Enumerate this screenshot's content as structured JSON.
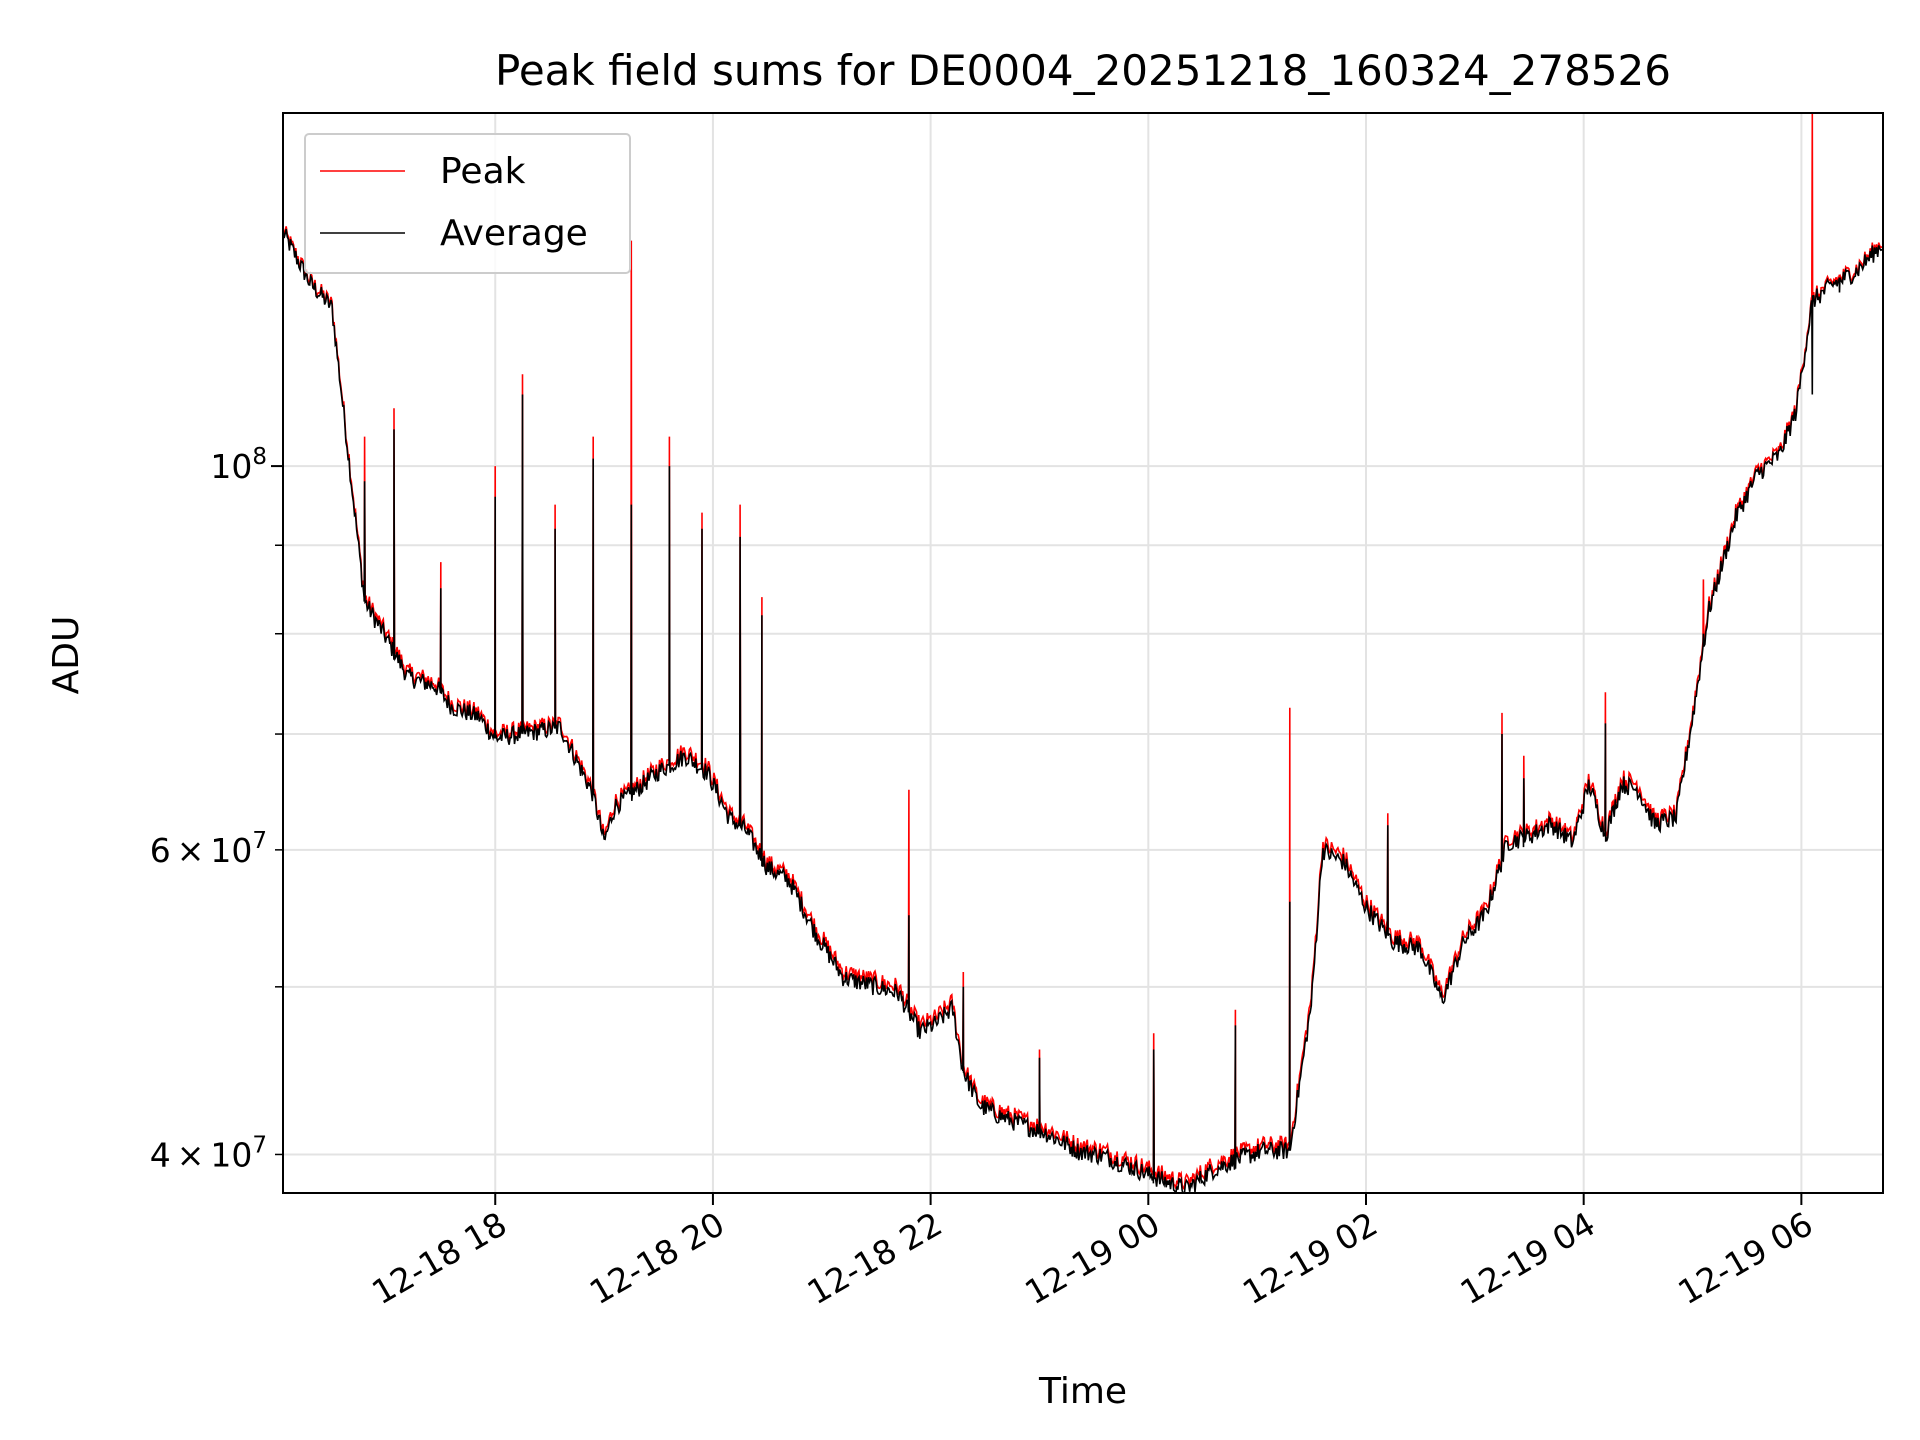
{
  "chart_data": {
    "type": "line",
    "title": "Peak field sums for DE0004_20251218_160324_278526",
    "xlabel": "Time",
    "ylabel": "ADU",
    "yscale": "log",
    "ylim": [
      38000000,
      160000000
    ],
    "xlim_hours_from_2025_12_18_16_00": [
      0.05,
      14.75
    ],
    "grid": true,
    "legend_position": "top-left",
    "x_ticks": [
      {
        "label": "12-18 18",
        "hour": 2
      },
      {
        "label": "12-18 20",
        "hour": 4
      },
      {
        "label": "12-18 22",
        "hour": 6
      },
      {
        "label": "12-19 00",
        "hour": 8
      },
      {
        "label": "12-19 02",
        "hour": 10
      },
      {
        "label": "12-19 04",
        "hour": 12
      },
      {
        "label": "12-19 06",
        "hour": 14
      }
    ],
    "y_major_ticks": [
      {
        "base": "10",
        "exp": "8",
        "value": 100000000
      }
    ],
    "y_minor_labeled_ticks": [
      {
        "mantissa": "6",
        "times": "×",
        "base": "10",
        "exp": "7",
        "value": 60000000
      },
      {
        "mantissa": "4",
        "times": "×",
        "base": "10",
        "exp": "7",
        "value": 40000000
      }
    ],
    "y_minor_grid_values": [
      50000000,
      70000000,
      80000000,
      90000000
    ],
    "series": [
      {
        "name": "Peak",
        "color": "#ff0000",
        "x_hours": [
          0.05,
          0.3,
          0.5,
          0.8,
          1.0,
          1.2,
          1.45,
          1.6,
          1.85,
          2.0,
          2.3,
          2.6,
          2.9,
          3.0,
          3.1,
          3.25,
          3.5,
          3.75,
          3.95,
          4.15,
          4.3,
          4.5,
          4.7,
          4.95,
          5.2,
          5.45,
          5.7,
          5.9,
          6.05,
          6.2,
          6.3,
          6.45,
          6.6,
          6.8,
          7.05,
          7.35,
          7.6,
          7.9,
          8.1,
          8.35,
          8.6,
          8.8,
          9.05,
          9.3,
          9.5,
          9.6,
          9.8,
          10.0,
          10.25,
          10.5,
          10.7,
          10.9,
          11.1,
          11.3,
          11.5,
          11.7,
          11.9,
          12.05,
          12.2,
          12.35,
          12.5,
          12.65,
          12.85,
          13.0,
          13.15,
          13.4,
          13.6,
          13.8,
          13.95,
          14.1,
          14.3,
          14.5,
          14.7,
          14.75
        ],
        "values": [
          137000000,
          128000000,
          124000000,
          84000000,
          80000000,
          76000000,
          75000000,
          73000000,
          72000000,
          70000000,
          70500000,
          71000000,
          65000000,
          61000000,
          64000000,
          65000000,
          67000000,
          68500000,
          67000000,
          63000000,
          62000000,
          59000000,
          58000000,
          54000000,
          51000000,
          50500000,
          50000000,
          47500000,
          48000000,
          49000000,
          45000000,
          43000000,
          42500000,
          42000000,
          41500000,
          40500000,
          40200000,
          39500000,
          39000000,
          38500000,
          39500000,
          40000000,
          40500000,
          40500000,
          49500000,
          60500000,
          59500000,
          56000000,
          53500000,
          53000000,
          49500000,
          53500000,
          55500000,
          61000000,
          61500000,
          62500000,
          61000000,
          66000000,
          61500000,
          66000000,
          65500000,
          62500000,
          63000000,
          72000000,
          83000000,
          94000000,
          99500000,
          102000000,
          108000000,
          125000000,
          128000000,
          130000000,
          134000000,
          135000000
        ],
        "spikes": [
          {
            "hour": 0.8,
            "value": 104000000
          },
          {
            "hour": 1.07,
            "value": 108000000
          },
          {
            "hour": 1.5,
            "value": 88000000
          },
          {
            "hour": 2.0,
            "value": 100000000
          },
          {
            "hour": 2.25,
            "value": 113000000
          },
          {
            "hour": 2.55,
            "value": 95000000
          },
          {
            "hour": 2.9,
            "value": 104000000
          },
          {
            "hour": 3.25,
            "value": 135000000
          },
          {
            "hour": 3.6,
            "value": 104000000
          },
          {
            "hour": 3.9,
            "value": 94000000
          },
          {
            "hour": 4.25,
            "value": 95000000
          },
          {
            "hour": 4.45,
            "value": 84000000
          },
          {
            "hour": 5.8,
            "value": 65000000
          },
          {
            "hour": 6.3,
            "value": 51000000
          },
          {
            "hour": 7.0,
            "value": 46000000
          },
          {
            "hour": 8.05,
            "value": 47000000
          },
          {
            "hour": 8.8,
            "value": 48500000
          },
          {
            "hour": 9.3,
            "value": 72500000
          },
          {
            "hour": 10.2,
            "value": 63000000
          },
          {
            "hour": 11.25,
            "value": 72000000
          },
          {
            "hour": 11.45,
            "value": 68000000
          },
          {
            "hour": 12.2,
            "value": 74000000
          },
          {
            "hour": 13.1,
            "value": 86000000
          },
          {
            "hour": 14.1,
            "value": 160000000
          },
          {
            "hour": 14.35,
            "value": 128000000
          }
        ]
      },
      {
        "name": "Average",
        "color": "#000000",
        "x_hours": [
          0.05,
          0.3,
          0.5,
          0.8,
          1.0,
          1.2,
          1.45,
          1.6,
          1.85,
          2.0,
          2.3,
          2.6,
          2.9,
          3.0,
          3.1,
          3.25,
          3.5,
          3.75,
          3.95,
          4.15,
          4.3,
          4.5,
          4.7,
          4.95,
          5.2,
          5.45,
          5.7,
          5.9,
          6.05,
          6.2,
          6.3,
          6.45,
          6.6,
          6.8,
          7.05,
          7.35,
          7.6,
          7.9,
          8.1,
          8.35,
          8.6,
          8.8,
          9.05,
          9.3,
          9.5,
          9.6,
          9.8,
          10.0,
          10.25,
          10.5,
          10.7,
          10.9,
          11.1,
          11.3,
          11.5,
          11.7,
          11.9,
          12.05,
          12.2,
          12.35,
          12.5,
          12.65,
          12.85,
          13.0,
          13.15,
          13.4,
          13.6,
          13.8,
          13.95,
          14.1,
          14.3,
          14.5,
          14.7,
          14.75
        ],
        "values": [
          136500000,
          127500000,
          123500000,
          83500000,
          79500000,
          75500000,
          74600000,
          72600000,
          71600000,
          69600000,
          70100000,
          70600000,
          64600000,
          60600000,
          63600000,
          64600000,
          66600000,
          68000000,
          66500000,
          62600000,
          61600000,
          58600000,
          57600000,
          53600000,
          50600000,
          50100000,
          49600000,
          47100000,
          47600000,
          48600000,
          44700000,
          42700000,
          42200000,
          41700000,
          41200000,
          40200000,
          39900000,
          39200000,
          38700000,
          38200000,
          39200000,
          39700000,
          40200000,
          40200000,
          49000000,
          60000000,
          59000000,
          55600000,
          53100000,
          52600000,
          49100000,
          53100000,
          55100000,
          60600000,
          61100000,
          62100000,
          60600000,
          65500000,
          61100000,
          65500000,
          65000000,
          62100000,
          62600000,
          71500000,
          82500000,
          93500000,
          99000000,
          101500000,
          107500000,
          124500000,
          127500000,
          129500000,
          133500000,
          134500000
        ],
        "spikes": [
          {
            "hour": 0.8,
            "value": 98000000
          },
          {
            "hour": 1.07,
            "value": 105000000
          },
          {
            "hour": 1.5,
            "value": 85000000
          },
          {
            "hour": 2.0,
            "value": 96000000
          },
          {
            "hour": 2.25,
            "value": 110000000
          },
          {
            "hour": 2.55,
            "value": 92000000
          },
          {
            "hour": 2.9,
            "value": 101000000
          },
          {
            "hour": 3.25,
            "value": 95000000
          },
          {
            "hour": 3.6,
            "value": 100000000
          },
          {
            "hour": 3.9,
            "value": 92000000
          },
          {
            "hour": 4.25,
            "value": 91000000
          },
          {
            "hour": 4.45,
            "value": 82000000
          },
          {
            "hour": 5.8,
            "value": 55000000
          },
          {
            "hour": 6.3,
            "value": 50000000
          },
          {
            "hour": 7.0,
            "value": 45500000
          },
          {
            "hour": 8.05,
            "value": 46000000
          },
          {
            "hour": 8.8,
            "value": 47500000
          },
          {
            "hour": 9.3,
            "value": 56000000
          },
          {
            "hour": 10.2,
            "value": 62000000
          },
          {
            "hour": 11.25,
            "value": 70000000
          },
          {
            "hour": 11.45,
            "value": 66000000
          },
          {
            "hour": 12.2,
            "value": 71000000
          },
          {
            "hour": 13.1,
            "value": 80000000
          },
          {
            "hour": 14.1,
            "value": 110000000
          },
          {
            "hour": 14.35,
            "value": 126000000
          }
        ]
      }
    ]
  }
}
